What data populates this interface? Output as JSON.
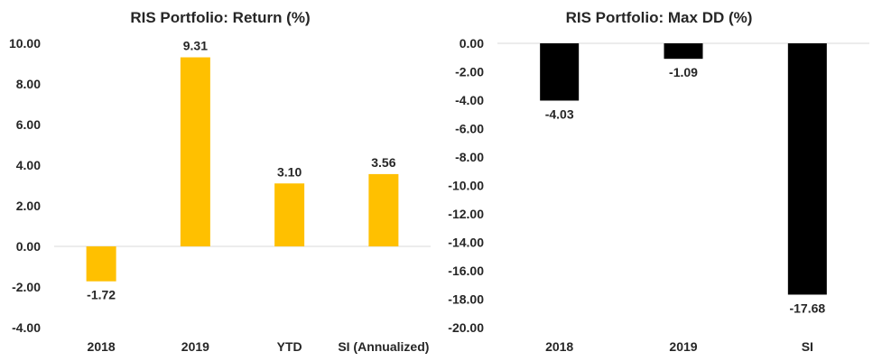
{
  "chart_data": [
    {
      "type": "bar",
      "title": "RIS Portfolio: Return (%)",
      "xlabel": "",
      "ylabel": "",
      "categories": [
        "2018",
        "2019",
        "YTD",
        "SI (Annualized)"
      ],
      "values": [
        -1.72,
        9.31,
        3.1,
        3.56
      ],
      "data_labels": [
        "-1.72",
        "9.31",
        "3.10",
        "3.56"
      ],
      "ylim": [
        -4,
        10
      ],
      "yticks": [
        "10.00",
        "8.00",
        "6.00",
        "4.00",
        "2.00",
        "0.00",
        "-2.00",
        "-4.00"
      ],
      "ytick_values": [
        10,
        8,
        6,
        4,
        2,
        0,
        -2,
        -4
      ],
      "bar_color": "#FFC000",
      "grid": false,
      "legend": "none"
    },
    {
      "type": "bar",
      "title": "RIS Portfolio: Max DD (%)",
      "xlabel": "",
      "ylabel": "",
      "categories": [
        "2018",
        "2019",
        "SI"
      ],
      "values": [
        -4.03,
        -1.09,
        -17.68
      ],
      "data_labels": [
        "-4.03",
        "-1.09",
        "-17.68"
      ],
      "ylim": [
        -20,
        0
      ],
      "yticks": [
        "0.00",
        "-2.00",
        "-4.00",
        "-6.00",
        "-8.00",
        "-10.00",
        "-12.00",
        "-14.00",
        "-16.00",
        "-18.00",
        "-20.00"
      ],
      "ytick_values": [
        0,
        -2,
        -4,
        -6,
        -8,
        -10,
        -12,
        -14,
        -16,
        -18,
        -20
      ],
      "bar_color": "#000000",
      "grid": false,
      "legend": "none"
    }
  ]
}
